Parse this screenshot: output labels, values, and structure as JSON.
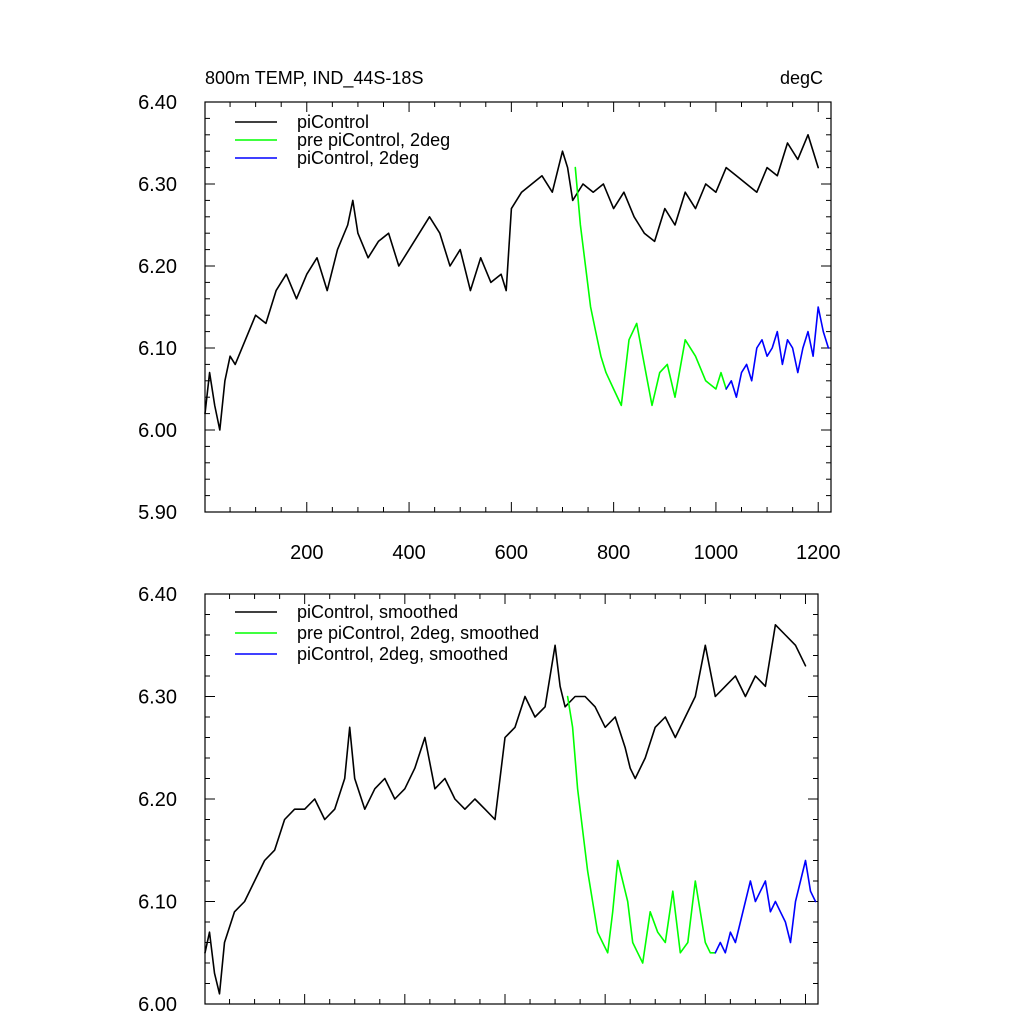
{
  "chart_data": [
    {
      "type": "line",
      "title_left": "800m TEMP, IND_44S-18S",
      "title_right": "degC",
      "xlim": [
        1,
        1225
      ],
      "ylim": [
        5.9,
        6.4
      ],
      "xticks": [
        200,
        400,
        600,
        800,
        1000,
        1200
      ],
      "xticklabels": [
        "200",
        "400",
        "600",
        "800",
        "1000",
        "1200"
      ],
      "yticks": [
        5.9,
        6.0,
        6.1,
        6.2,
        6.3,
        6.4
      ],
      "yticklabels": [
        "5.90",
        "6.00",
        "6.10",
        "6.20",
        "6.30",
        "6.40"
      ],
      "legend_position": "top-left",
      "series": [
        {
          "name": "piControl",
          "color": "#000000",
          "x": [
            1,
            10,
            20,
            30,
            40,
            50,
            60,
            80,
            100,
            120,
            140,
            160,
            180,
            200,
            220,
            240,
            260,
            280,
            290,
            300,
            320,
            340,
            360,
            380,
            400,
            420,
            440,
            460,
            480,
            500,
            520,
            540,
            560,
            580,
            590,
            600,
            620,
            640,
            660,
            680,
            700,
            710,
            720,
            740,
            760,
            780,
            800,
            820,
            840,
            850,
            860,
            880,
            900,
            920,
            940,
            960,
            980,
            1000,
            1020,
            1040,
            1060,
            1080,
            1100,
            1120,
            1140,
            1160,
            1180,
            1200
          ],
          "y": [
            6.02,
            6.07,
            6.03,
            6.0,
            6.06,
            6.09,
            6.08,
            6.11,
            6.14,
            6.13,
            6.17,
            6.19,
            6.16,
            6.19,
            6.21,
            6.17,
            6.22,
            6.25,
            6.28,
            6.24,
            6.21,
            6.23,
            6.24,
            6.2,
            6.22,
            6.24,
            6.26,
            6.24,
            6.2,
            6.22,
            6.17,
            6.21,
            6.18,
            6.19,
            6.17,
            6.27,
            6.29,
            6.3,
            6.31,
            6.29,
            6.34,
            6.32,
            6.28,
            6.3,
            6.29,
            6.3,
            6.27,
            6.29,
            6.26,
            6.25,
            6.24,
            6.23,
            6.27,
            6.25,
            6.29,
            6.27,
            6.3,
            6.29,
            6.32,
            6.31,
            6.3,
            6.29,
            6.32,
            6.31,
            6.35,
            6.33,
            6.36,
            6.32
          ]
        },
        {
          "name": "pre piControl, 2deg",
          "color": "#00ff00",
          "x": [
            725,
            735,
            745,
            755,
            765,
            775,
            785,
            800,
            815,
            830,
            845,
            860,
            875,
            890,
            905,
            920,
            940,
            960,
            980,
            1000,
            1010,
            1020
          ],
          "y": [
            6.32,
            6.25,
            6.2,
            6.15,
            6.12,
            6.09,
            6.07,
            6.05,
            6.03,
            6.11,
            6.13,
            6.08,
            6.03,
            6.07,
            6.08,
            6.04,
            6.11,
            6.09,
            6.06,
            6.05,
            6.07,
            6.05
          ]
        },
        {
          "name": "piControl, 2deg",
          "color": "#0000ff",
          "x": [
            1020,
            1030,
            1040,
            1050,
            1060,
            1070,
            1080,
            1090,
            1100,
            1110,
            1120,
            1130,
            1140,
            1150,
            1160,
            1170,
            1180,
            1190,
            1200,
            1210,
            1220
          ],
          "y": [
            6.05,
            6.06,
            6.04,
            6.07,
            6.08,
            6.06,
            6.1,
            6.11,
            6.09,
            6.1,
            6.12,
            6.08,
            6.11,
            6.1,
            6.07,
            6.1,
            6.12,
            6.09,
            6.15,
            6.12,
            6.1
          ]
        }
      ]
    },
    {
      "type": "line",
      "xlim": [
        1,
        1225
      ],
      "ylim": [
        6.0,
        6.4
      ],
      "yticks": [
        6.0,
        6.1,
        6.2,
        6.3,
        6.4
      ],
      "yticklabels": [
        "6.00",
        "6.10",
        "6.20",
        "6.30",
        "6.40"
      ],
      "legend_position": "top-left",
      "series": [
        {
          "name": "piControl, smoothed",
          "color": "#000000",
          "x": [
            1,
            10,
            20,
            30,
            40,
            60,
            80,
            100,
            120,
            140,
            160,
            180,
            200,
            220,
            240,
            260,
            280,
            290,
            300,
            320,
            340,
            360,
            380,
            400,
            420,
            440,
            460,
            480,
            500,
            520,
            540,
            560,
            580,
            600,
            620,
            640,
            660,
            680,
            700,
            710,
            720,
            740,
            760,
            780,
            800,
            820,
            840,
            850,
            860,
            880,
            900,
            920,
            940,
            960,
            980,
            1000,
            1020,
            1040,
            1060,
            1080,
            1100,
            1120,
            1140,
            1160,
            1180,
            1200
          ],
          "y": [
            6.05,
            6.07,
            6.03,
            6.01,
            6.06,
            6.09,
            6.1,
            6.12,
            6.14,
            6.15,
            6.18,
            6.19,
            6.19,
            6.2,
            6.18,
            6.19,
            6.22,
            6.27,
            6.22,
            6.19,
            6.21,
            6.22,
            6.2,
            6.21,
            6.23,
            6.26,
            6.21,
            6.22,
            6.2,
            6.19,
            6.2,
            6.19,
            6.18,
            6.26,
            6.27,
            6.3,
            6.28,
            6.29,
            6.35,
            6.31,
            6.29,
            6.3,
            6.3,
            6.29,
            6.27,
            6.28,
            6.25,
            6.23,
            6.22,
            6.24,
            6.27,
            6.28,
            6.26,
            6.28,
            6.3,
            6.35,
            6.3,
            6.31,
            6.32,
            6.3,
            6.32,
            6.31,
            6.37,
            6.36,
            6.35,
            6.33
          ]
        },
        {
          "name": "pre piControl, 2deg, smoothed",
          "color": "#00ff00",
          "x": [
            725,
            735,
            745,
            755,
            765,
            775,
            785,
            795,
            805,
            815,
            825,
            835,
            845,
            855,
            865,
            875,
            890,
            905,
            920,
            935,
            950,
            965,
            980,
            1000,
            1010,
            1020
          ],
          "y": [
            6.3,
            6.27,
            6.21,
            6.17,
            6.13,
            6.1,
            6.07,
            6.06,
            6.05,
            6.09,
            6.14,
            6.12,
            6.1,
            6.06,
            6.05,
            6.04,
            6.09,
            6.07,
            6.06,
            6.11,
            6.05,
            6.06,
            6.12,
            6.06,
            6.05,
            6.05
          ]
        },
        {
          "name": "piControl, 2deg, smoothed",
          "color": "#0000ff",
          "x": [
            1020,
            1030,
            1040,
            1050,
            1060,
            1070,
            1080,
            1090,
            1100,
            1110,
            1120,
            1130,
            1140,
            1150,
            1160,
            1170,
            1180,
            1190,
            1200,
            1210,
            1220
          ],
          "y": [
            6.05,
            6.06,
            6.05,
            6.07,
            6.06,
            6.08,
            6.1,
            6.12,
            6.1,
            6.11,
            6.12,
            6.09,
            6.1,
            6.09,
            6.08,
            6.06,
            6.1,
            6.12,
            6.14,
            6.11,
            6.1
          ]
        }
      ]
    }
  ]
}
